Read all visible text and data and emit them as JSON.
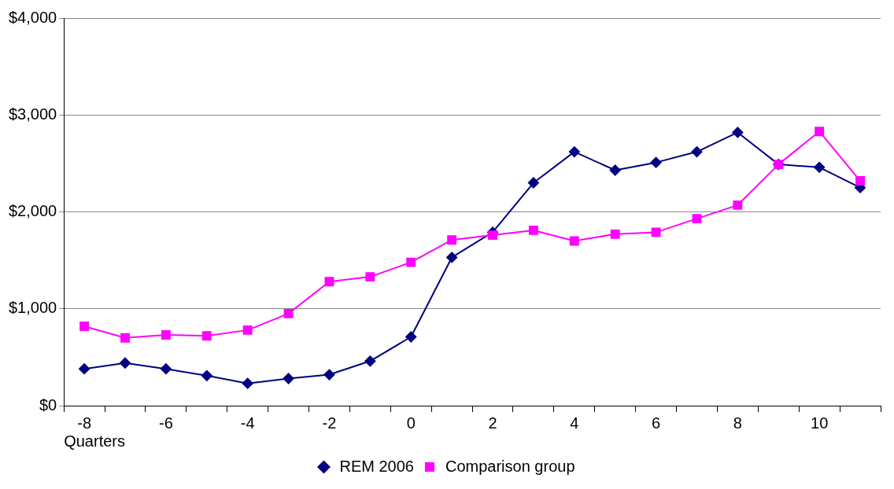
{
  "chart_data": {
    "type": "line",
    "xlabel": "Quarters",
    "categories": [
      "-8",
      null,
      "-6",
      null,
      "-4",
      null,
      "-2",
      null,
      "0",
      null,
      "2",
      null,
      "4",
      null,
      "6",
      null,
      "8",
      null,
      "10",
      null
    ],
    "series": [
      {
        "name": "REM 2006",
        "color": "#000080",
        "marker": "diamond",
        "values": [
          380,
          440,
          380,
          310,
          230,
          280,
          320,
          460,
          710,
          1530,
          1790,
          2300,
          2620,
          2430,
          2510,
          2620,
          2820,
          2490,
          2460,
          2250
        ]
      },
      {
        "name": "Comparison group",
        "color": "#ff00ff",
        "marker": "square",
        "values": [
          820,
          700,
          730,
          720,
          780,
          950,
          1280,
          1330,
          1480,
          1710,
          1760,
          1810,
          1700,
          1770,
          1790,
          1930,
          2070,
          2490,
          2830,
          2320
        ]
      }
    ],
    "ylim": [
      0,
      4000
    ],
    "yticks": [
      {
        "value": 0,
        "label": "$0"
      },
      {
        "value": 1000,
        "label": "$1,000"
      },
      {
        "value": 2000,
        "label": "$2,000"
      },
      {
        "value": 3000,
        "label": "$3,000"
      },
      {
        "value": 4000,
        "label": "$4,000"
      }
    ],
    "grid": "y",
    "legend": "bottom",
    "line_style": "solid"
  }
}
